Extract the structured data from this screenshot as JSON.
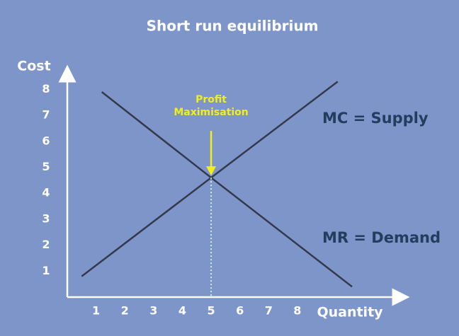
{
  "chart_data": {
    "type": "line",
    "title": "Short run equilibrium",
    "y_label": "Cost",
    "x_label": "Quantity",
    "xlim": [
      0,
      11.5
    ],
    "ylim": [
      0,
      8.5
    ],
    "xticks": [
      1,
      2,
      3,
      4,
      5,
      6,
      7,
      8
    ],
    "yticks": [
      1,
      2,
      3,
      4,
      5,
      6,
      7,
      8
    ],
    "series": [
      {
        "name": "MC = Supply",
        "color": "#333a4c",
        "x": [
          0.5,
          5,
          9.4
        ],
        "values": [
          0.8,
          4.6,
          8.3
        ]
      },
      {
        "name": "MR = Demand",
        "color": "#333a4c",
        "x": [
          1.2,
          5,
          9.9
        ],
        "values": [
          7.9,
          4.6,
          0.4
        ]
      }
    ],
    "annotations": [
      {
        "lines": [
          "Profit",
          "Maximisation"
        ],
        "x": 5,
        "y": 4.6,
        "color": "#f2ee1c"
      }
    ]
  }
}
